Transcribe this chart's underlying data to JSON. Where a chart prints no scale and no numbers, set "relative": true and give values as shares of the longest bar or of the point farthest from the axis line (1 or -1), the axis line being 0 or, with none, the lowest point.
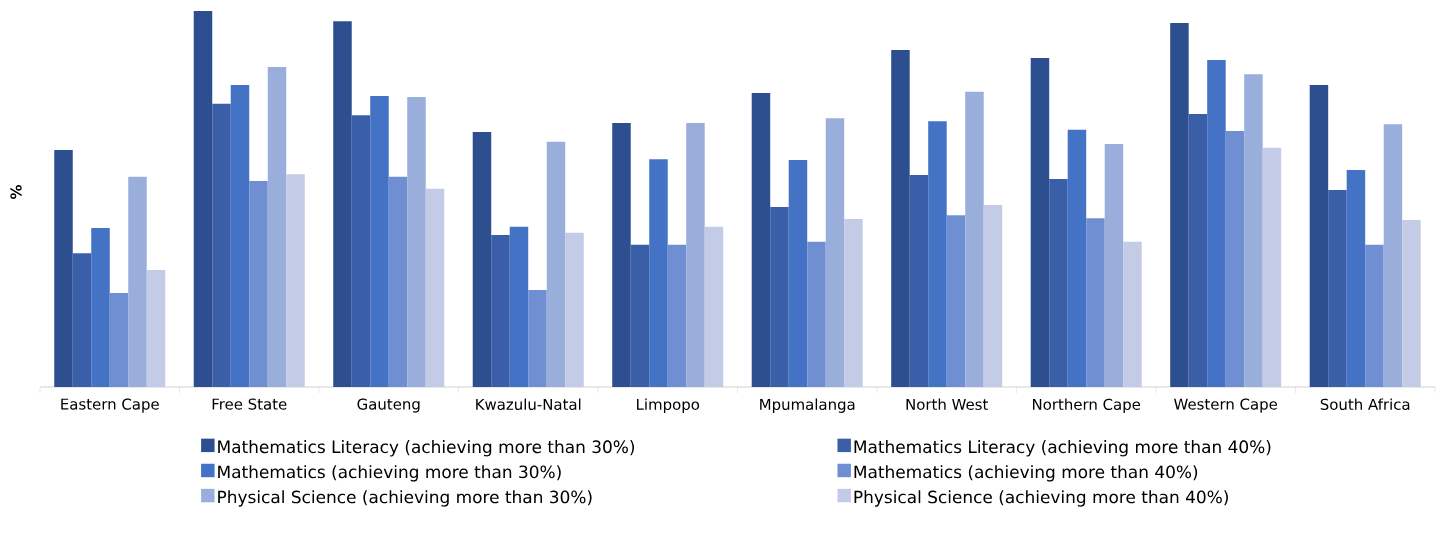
{
  "chart_data": {
    "type": "bar",
    "relative": true,
    "ylabel": "%",
    "legend": "bottom",
    "categories": [
      "Eastern Cape",
      "Free State",
      "Gauteng",
      "Kwazulu-Natal",
      "Limpopo",
      "Mpumalanga",
      "North West",
      "Northern Cape",
      "Western Cape",
      "South Africa"
    ],
    "series": [
      {
        "name": "Mathematics Literacy (achieving more than 30%)",
        "color": "#2e4f8f",
        "values": [
          0.63,
          1,
          0.973,
          0.678,
          0.702,
          0.782,
          0.896,
          0.875,
          0.968,
          0.803
        ]
      },
      {
        "name": "Mathematics Literacy (achieving more than 40%)",
        "color": "#3a5ea8",
        "values": [
          0.356,
          0.753,
          0.723,
          0.404,
          0.378,
          0.479,
          0.564,
          0.553,
          0.726,
          0.524
        ]
      },
      {
        "name": "Mathematics (achieving more than 30%)",
        "color": "#4472c4",
        "values": [
          0.423,
          0.803,
          0.774,
          0.426,
          0.606,
          0.604,
          0.707,
          0.684,
          0.87,
          0.577
        ]
      },
      {
        "name": "Mathematics (achieving more than 40%)",
        "color": "#6f8fd2",
        "values": [
          0.25,
          0.548,
          0.559,
          0.258,
          0.378,
          0.386,
          0.457,
          0.449,
          0.681,
          0.378
        ]
      },
      {
        "name": "Physical Science (achieving more than 30%)",
        "color": "#9aaedb",
        "values": [
          0.559,
          0.851,
          0.771,
          0.652,
          0.702,
          0.715,
          0.785,
          0.646,
          0.832,
          0.699
        ]
      },
      {
        "name": "Physical Science (achieving more than 40%)",
        "color": "#c3cbe6",
        "values": [
          0.311,
          0.566,
          0.527,
          0.41,
          0.426,
          0.447,
          0.484,
          0.386,
          0.636,
          0.444
        ]
      }
    ]
  }
}
